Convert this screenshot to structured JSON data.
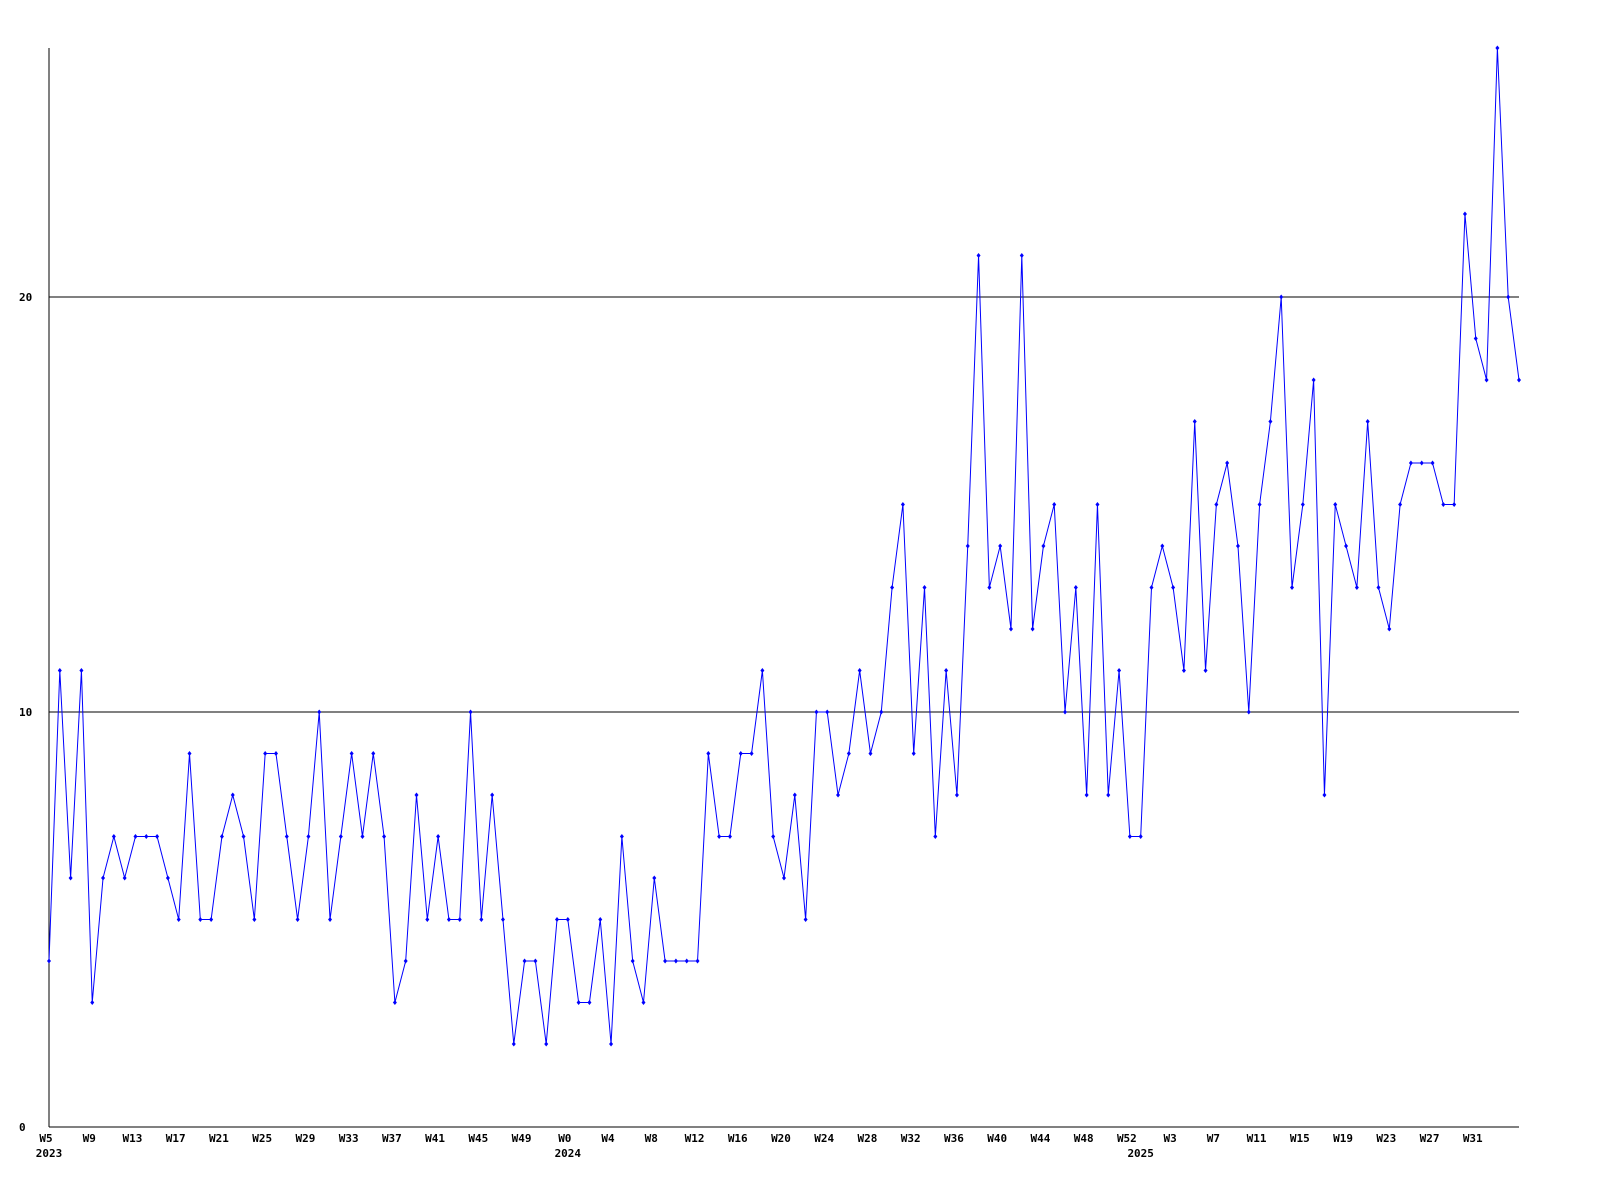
{
  "chart_data": {
    "type": "line",
    "categories": [
      "W5",
      null,
      null,
      null,
      "W9",
      null,
      null,
      null,
      "W13",
      null,
      null,
      null,
      "W17",
      null,
      null,
      null,
      "W21",
      null,
      null,
      null,
      "W25",
      null,
      null,
      null,
      "W29",
      null,
      null,
      null,
      "W33",
      null,
      null,
      null,
      "W37",
      null,
      null,
      null,
      "W41",
      null,
      null,
      null,
      "W45",
      null,
      null,
      null,
      "W49",
      null,
      null,
      null,
      "W0",
      null,
      null,
      null,
      "W4",
      null,
      null,
      null,
      "W8",
      null,
      null,
      null,
      "W12",
      null,
      null,
      null,
      "W16",
      null,
      null,
      null,
      "W20",
      null,
      null,
      null,
      "W24",
      null,
      null,
      null,
      "W28",
      null,
      null,
      null,
      "W32",
      null,
      null,
      null,
      "W36",
      null,
      null,
      null,
      "W40",
      null,
      null,
      null,
      "W44",
      null,
      null,
      null,
      "W48",
      null,
      null,
      null,
      "W52",
      null,
      null,
      null,
      "W3",
      null,
      null,
      null,
      "W7",
      null,
      null,
      null,
      "W11",
      null,
      null,
      null,
      "W15",
      null,
      null,
      null,
      "W19",
      null,
      null,
      null,
      "W23",
      null,
      null,
      null,
      "W27",
      null,
      null,
      null,
      "W31",
      null,
      null,
      null,
      null
    ],
    "year_labels": [
      "2023",
      null,
      null,
      null,
      null,
      null,
      null,
      null,
      null,
      null,
      null,
      null,
      null,
      null,
      null,
      null,
      null,
      null,
      null,
      null,
      null,
      null,
      null,
      null,
      null,
      null,
      null,
      null,
      null,
      null,
      null,
      null,
      null,
      null,
      null,
      null,
      null,
      null,
      null,
      null,
      null,
      null,
      null,
      null,
      null,
      null,
      null,
      null,
      "2024",
      null,
      null,
      null,
      null,
      null,
      null,
      null,
      null,
      null,
      null,
      null,
      null,
      null,
      null,
      null,
      null,
      null,
      null,
      null,
      null,
      null,
      null,
      null,
      null,
      null,
      null,
      null,
      null,
      null,
      null,
      null,
      null,
      null,
      null,
      null,
      null,
      null,
      null,
      null,
      null,
      null,
      null,
      null,
      null,
      null,
      null,
      null,
      null,
      null,
      null,
      null,
      null,
      "2025",
      null,
      null,
      null,
      null,
      null,
      null,
      null,
      null,
      null,
      null,
      null,
      null,
      null,
      null,
      null,
      null,
      null,
      null,
      null,
      null,
      null,
      null,
      null,
      null,
      null,
      null,
      null,
      null,
      null,
      null,
      null,
      null,
      null,
      null,
      null
    ],
    "values": [
      4,
      11,
      6,
      11,
      3,
      6,
      7,
      6,
      7,
      7,
      7,
      6,
      5,
      9,
      5,
      5,
      7,
      8,
      7,
      5,
      9,
      9,
      7,
      5,
      7,
      10,
      5,
      7,
      9,
      7,
      9,
      7,
      3,
      4,
      8,
      5,
      7,
      5,
      5,
      10,
      5,
      8,
      5,
      2,
      4,
      4,
      2,
      5,
      5,
      3,
      3,
      5,
      2,
      7,
      4,
      3,
      6,
      4,
      4,
      4,
      4,
      9,
      7,
      7,
      9,
      9,
      11,
      7,
      6,
      8,
      5,
      10,
      10,
      8,
      9,
      11,
      9,
      10,
      13,
      15,
      9,
      13,
      7,
      11,
      8,
      14,
      21,
      13,
      14,
      12,
      21,
      12,
      14,
      15,
      10,
      13,
      8,
      15,
      8,
      11,
      7,
      7,
      13,
      14,
      13,
      11,
      17,
      11,
      15,
      16,
      14,
      10,
      15,
      17,
      20,
      13,
      15,
      18,
      8,
      15,
      14,
      13,
      17,
      13,
      12,
      15,
      16,
      16,
      16,
      15,
      15,
      22,
      19,
      18,
      26,
      20,
      18
    ],
    "color": "#0000ff",
    "grid_color": "#000000",
    "ylim": [
      0,
      26
    ],
    "yticks": [
      0,
      10,
      20
    ],
    "grid": true
  }
}
